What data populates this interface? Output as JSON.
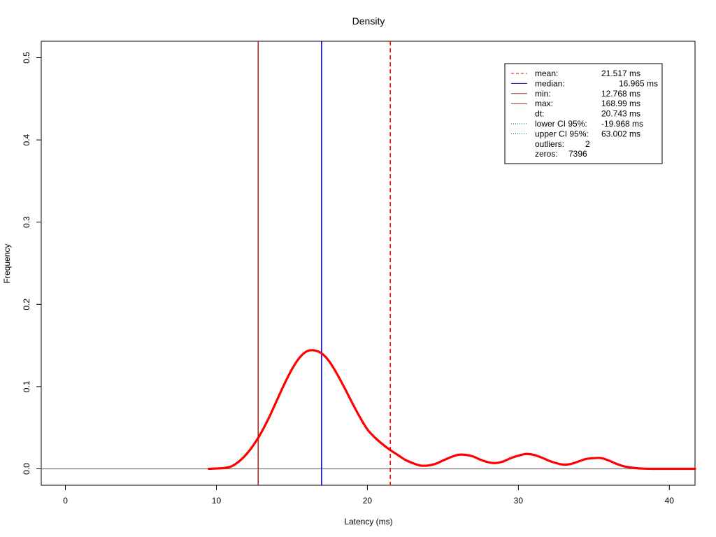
{
  "chart_data": {
    "type": "line",
    "title": "Density",
    "xlabel": "Latency (ms)",
    "ylabel": "Frequency",
    "xlim": [
      -1.6,
      41.7
    ],
    "ylim": [
      -0.02,
      0.52
    ],
    "x_ticks": [
      "0",
      "10",
      "20",
      "30",
      "40"
    ],
    "y_ticks": [
      "0.0",
      "0.1",
      "0.2",
      "0.3",
      "0.4",
      "0.5"
    ],
    "grid": false,
    "legend_position": "top-right",
    "density": {
      "color": "#ff0000",
      "points": [
        [
          9.5,
          0.0
        ],
        [
          10.5,
          0.001
        ],
        [
          11.0,
          0.003
        ],
        [
          11.5,
          0.009
        ],
        [
          12.0,
          0.018
        ],
        [
          12.5,
          0.03
        ],
        [
          13.0,
          0.045
        ],
        [
          13.5,
          0.063
        ],
        [
          14.0,
          0.083
        ],
        [
          14.5,
          0.103
        ],
        [
          15.0,
          0.121
        ],
        [
          15.5,
          0.135
        ],
        [
          16.0,
          0.143
        ],
        [
          16.5,
          0.144
        ],
        [
          17.0,
          0.14
        ],
        [
          17.5,
          0.13
        ],
        [
          18.0,
          0.115
        ],
        [
          18.5,
          0.098
        ],
        [
          19.0,
          0.08
        ],
        [
          19.5,
          0.063
        ],
        [
          20.0,
          0.048
        ],
        [
          20.5,
          0.038
        ],
        [
          21.0,
          0.03
        ],
        [
          21.5,
          0.023
        ],
        [
          22.0,
          0.017
        ],
        [
          22.5,
          0.011
        ],
        [
          23.0,
          0.007
        ],
        [
          23.5,
          0.004
        ],
        [
          24.0,
          0.004
        ],
        [
          24.5,
          0.006
        ],
        [
          25.0,
          0.01
        ],
        [
          25.5,
          0.014
        ],
        [
          26.0,
          0.017
        ],
        [
          26.5,
          0.017
        ],
        [
          27.0,
          0.015
        ],
        [
          27.5,
          0.011
        ],
        [
          28.0,
          0.008
        ],
        [
          28.5,
          0.007
        ],
        [
          29.0,
          0.009
        ],
        [
          29.5,
          0.013
        ],
        [
          30.0,
          0.016
        ],
        [
          30.5,
          0.018
        ],
        [
          31.0,
          0.017
        ],
        [
          31.5,
          0.014
        ],
        [
          32.0,
          0.01
        ],
        [
          32.5,
          0.007
        ],
        [
          33.0,
          0.005
        ],
        [
          33.5,
          0.006
        ],
        [
          34.0,
          0.009
        ],
        [
          34.5,
          0.012
        ],
        [
          35.0,
          0.013
        ],
        [
          35.5,
          0.013
        ],
        [
          36.0,
          0.01
        ],
        [
          36.5,
          0.006
        ],
        [
          37.0,
          0.003
        ],
        [
          37.5,
          0.0015
        ],
        [
          38.0,
          0.0005
        ],
        [
          39.0,
          0.0
        ],
        [
          41.7,
          0.0
        ]
      ]
    },
    "reference_lines": [
      {
        "name": "min",
        "x": 12.768,
        "color": "#a52a2a",
        "style": "solid"
      },
      {
        "name": "median",
        "x": 16.965,
        "color": "#0000ff",
        "style": "solid"
      },
      {
        "name": "mean",
        "x": 21.517,
        "color": "#ff0000",
        "style": "dashed"
      }
    ],
    "legend": [
      {
        "label": "mean:",
        "value": "21.517 ms",
        "color": "#ff0000",
        "style": "dashed"
      },
      {
        "label": "median:",
        "value": "16.965 ms",
        "color": "#00008b",
        "style": "solid"
      },
      {
        "label": "min:",
        "value": "12.768 ms",
        "color": "#a52a2a",
        "style": "solid"
      },
      {
        "label": "max:",
        "value": "168.99 ms",
        "color": "#a52a2a",
        "style": "solid"
      },
      {
        "label": "dt:",
        "value": "20.743 ms",
        "color": "",
        "style": "none"
      },
      {
        "label": "lower CI 95%:",
        "value": "-19.968 ms",
        "color": "#006400",
        "style": "dotted"
      },
      {
        "label": "upper CI 95%:",
        "value": "63.002 ms",
        "color": "#006400",
        "style": "dotted"
      },
      {
        "label": "outliers:",
        "value": "2",
        "color": "",
        "style": "none"
      },
      {
        "label": "zeros:",
        "value": "7396",
        "color": "",
        "style": "none"
      }
    ]
  }
}
